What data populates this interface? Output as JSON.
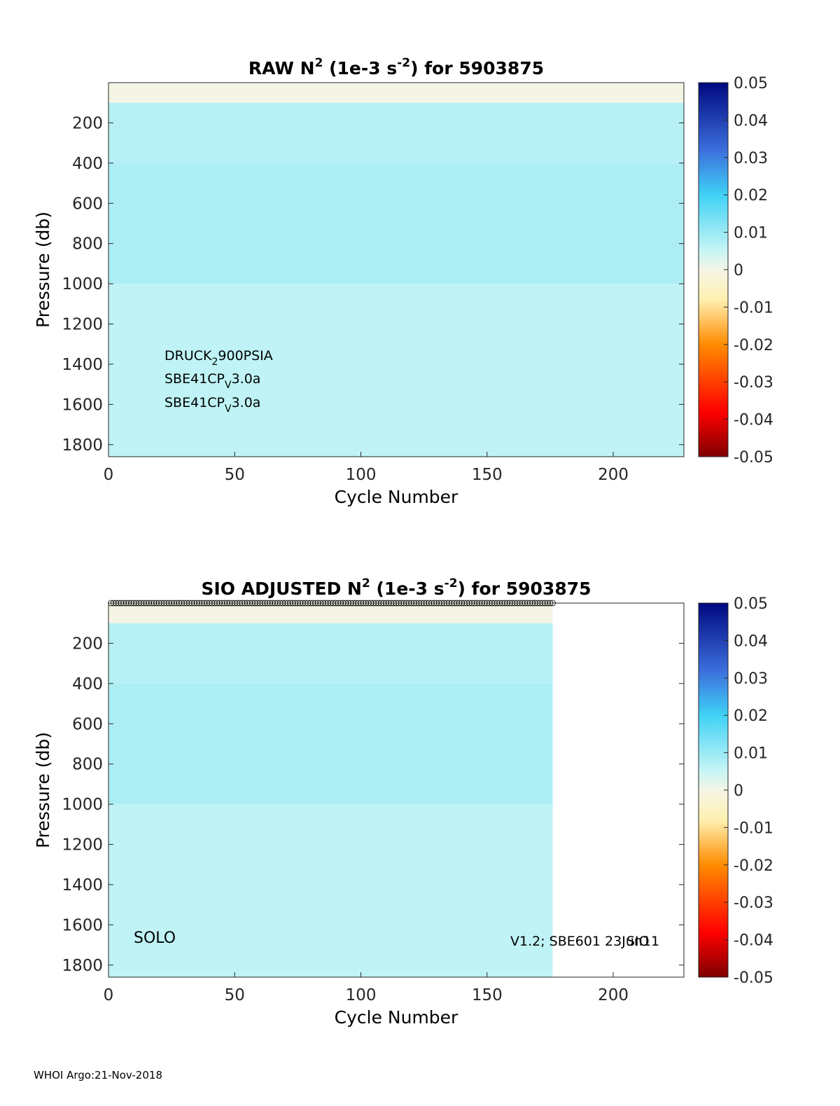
{
  "chart_data": [
    {
      "type": "heatmap",
      "title_prefix": "RAW N",
      "title_sup1": "2",
      "title_mid": " (1e-3 s",
      "title_sup2": "-2",
      "title_suffix": ") for 5903875",
      "xlabel": "Cycle Number",
      "ylabel": "Pressure (db)",
      "xlim": [
        0,
        228
      ],
      "ylim": [
        1860,
        0
      ],
      "xticks": [
        0,
        50,
        100,
        150,
        200
      ],
      "yticks": [
        200,
        400,
        600,
        800,
        1000,
        1200,
        1400,
        1600,
        1800
      ],
      "colorbar": {
        "min": -0.05,
        "max": 0.05,
        "ticks": [
          "0.05",
          "0.04",
          "0.03",
          "0.02",
          "0.01",
          "0",
          "-0.01",
          "-0.02",
          "-0.03",
          "-0.04",
          "-0.05"
        ]
      },
      "n_cycles": 228,
      "sensors": [
        {
          "base": "DRUCK",
          "sub": "2",
          "rest": "900PSIA"
        },
        {
          "base": "SBE41CP",
          "sub": "V",
          "rest": "3.0a"
        },
        {
          "base": "SBE41CP",
          "sub": "V",
          "rest": "3.0a"
        }
      ],
      "bands": [
        {
          "p_max": 100,
          "value": 0.0
        },
        {
          "p_max": 400,
          "value": 0.007
        },
        {
          "p_max": 1000,
          "value": 0.008
        },
        {
          "p_max": 1860,
          "value": 0.006
        }
      ]
    },
    {
      "type": "heatmap",
      "title_prefix": "SIO  ADJUSTED N",
      "title_sup1": "2",
      "title_mid": " (1e-3 s",
      "title_sup2": "-2",
      "title_suffix": ") for 5903875",
      "xlabel": "Cycle Number",
      "ylabel": "Pressure (db)",
      "xlim": [
        0,
        228
      ],
      "ylim": [
        1860,
        0
      ],
      "xticks": [
        0,
        50,
        100,
        150,
        200
      ],
      "yticks": [
        200,
        400,
        600,
        800,
        1000,
        1200,
        1400,
        1600,
        1800
      ],
      "colorbar": {
        "min": -0.05,
        "max": 0.05,
        "ticks": [
          "0.05",
          "0.04",
          "0.03",
          "0.02",
          "0.01",
          "0",
          "-0.01",
          "-0.02",
          "-0.03",
          "-0.04",
          "-0.05"
        ]
      },
      "n_cycles": 176,
      "annotation_left": "SOLO",
      "annotation_right": "V1.2; SBE601 23Jun11",
      "annotation_right_overlap": "SIO",
      "bands": [
        {
          "p_max": 100,
          "value": 0.0
        },
        {
          "p_max": 400,
          "value": 0.007
        },
        {
          "p_max": 1000,
          "value": 0.008
        },
        {
          "p_max": 1860,
          "value": 0.006
        }
      ]
    }
  ],
  "footer": "WHOI Argo:21-Nov-2018"
}
